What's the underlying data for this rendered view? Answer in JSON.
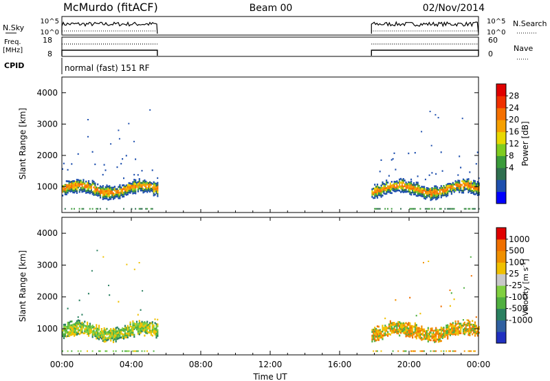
{
  "header": {
    "station": "McMurdo (fitACF)",
    "beam": "Beam 00",
    "date": "02/Nov/2014"
  },
  "panels": {
    "nsky_label": "N.Sky",
    "nsky_ticks": [
      "10^5",
      "10^0"
    ],
    "nsearch_label": "N.Search",
    "nsearch_ticks": [
      "10^5",
      "10^0"
    ],
    "freq_label": "Freq.",
    "freq_unit": "[MHz]",
    "freq_ticks": [
      "18",
      "8"
    ],
    "nave_label": "Nave",
    "nave_ticks": [
      "60",
      "0"
    ],
    "cpid_label": "CPID",
    "cpid_text": "normal (fast) 151 RF"
  },
  "chart_data": [
    {
      "type": "heatmap",
      "name": "power",
      "ylabel": "Slant Range [km]",
      "yticks": [
        "4000",
        "3000",
        "2000",
        "1000"
      ],
      "ylim": [
        180,
        4500
      ],
      "colorbar_label": "Power [dB]",
      "colorbar_ticks": [
        "28",
        "24",
        "20",
        "16",
        "12",
        "8",
        "4"
      ],
      "colors": [
        "#0000ff",
        "#1e4fae",
        "#2f6f4f",
        "#3a9b3a",
        "#7fcc1f",
        "#e8d800",
        "#f6a000",
        "#f57000",
        "#f03000",
        "#e00000"
      ],
      "data_segments": [
        {
          "start": "00:00",
          "end": "05:30"
        },
        {
          "start": "17:50",
          "end": "24:00"
        }
      ]
    },
    {
      "type": "heatmap",
      "name": "velocity",
      "ylabel": "Slant Range [km]",
      "yticks": [
        "4000",
        "3000",
        "2000",
        "1000"
      ],
      "ylim": [
        180,
        4500
      ],
      "colorbar_label": "Velocity [m s^-1]",
      "colorbar_ticks": [
        "1000",
        "500",
        "100",
        "25",
        "-25",
        "-100",
        "-500",
        "-1000"
      ],
      "colors": [
        "#2030c0",
        "#3060a0",
        "#2a8060",
        "#50b040",
        "#80d040",
        "#c8c8c8",
        "#f0c000",
        "#f09000",
        "#f07000",
        "#e00000"
      ],
      "data_segments": [
        {
          "start": "00:00",
          "end": "05:30"
        },
        {
          "start": "17:50",
          "end": "24:00"
        }
      ]
    }
  ],
  "xaxis": {
    "ticks": [
      "00:00",
      "04:00",
      "08:00",
      "12:00",
      "16:00",
      "20:00",
      "00:00"
    ],
    "label": "Time UT"
  }
}
